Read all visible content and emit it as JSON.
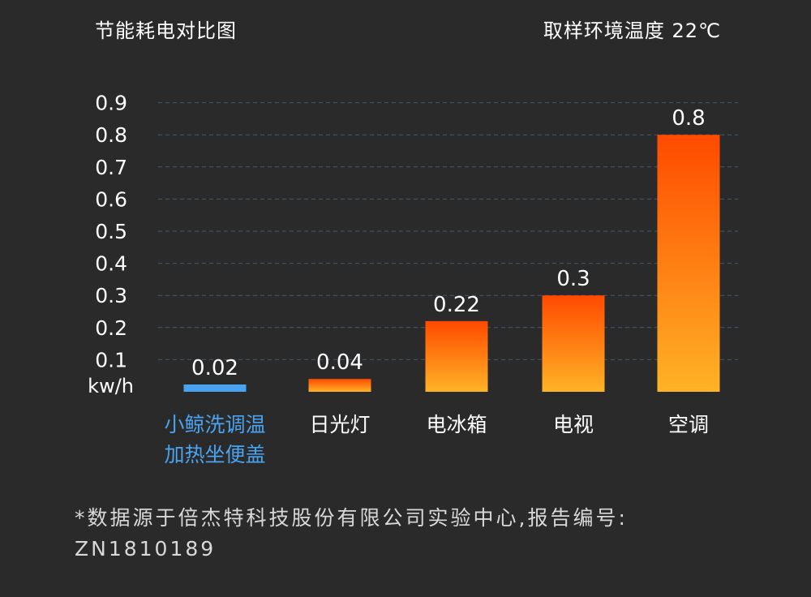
{
  "header": {
    "title": "节能耗电对比图",
    "temperature_note": "取样环境温度 22℃"
  },
  "chart_data": {
    "type": "bar",
    "categories": [
      "小鲸洗调温\n加热坐便盖",
      "日光灯",
      "电冰箱",
      "电视",
      "空调"
    ],
    "values": [
      0.02,
      0.04,
      0.22,
      0.3,
      0.8
    ],
    "value_labels": [
      "0.02",
      "0.04",
      "0.22",
      "0.3",
      "0.8"
    ],
    "unit_label": "kw/h",
    "yticks": [
      "0.1",
      "0.2",
      "0.3",
      "0.4",
      "0.5",
      "0.6",
      "0.7",
      "0.8",
      "0.9"
    ],
    "ylim": [
      0,
      0.9
    ],
    "grid": true,
    "colors": {
      "highlight": "#4aa3f0",
      "bar_top": "#ff4a00",
      "bar_bottom": "#ffb326",
      "grid": "#3e5a74",
      "text": "#ffffff"
    }
  },
  "footnote": {
    "line1": "*数据源于倍杰特科技股份有限公司实验中心,报告编号:",
    "line2": "ZN1810189"
  }
}
